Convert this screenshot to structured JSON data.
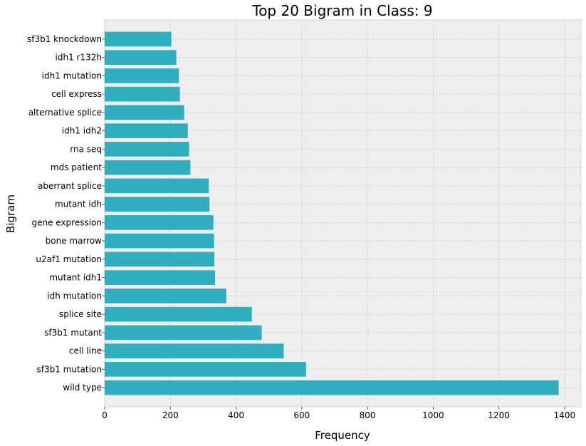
{
  "chart_data": {
    "type": "bar",
    "orientation": "horizontal",
    "title": "Top 20 Bigram in Class: 9",
    "xlabel": "Frequency",
    "ylabel": "Bigram",
    "xlim": [
      0,
      1450
    ],
    "xticks": [
      0,
      200,
      400,
      600,
      800,
      1000,
      1200,
      1400
    ],
    "grid": true,
    "bar_color": "#30aec0",
    "background_color": "#eeeeee",
    "grid_color": "#cbcbcb",
    "categories": [
      "sf3b1 knockdown",
      "idh1 r132h",
      "idh1 mutation",
      "cell express",
      "alternative splice",
      "idh1 idh2",
      "rna seq",
      "mds patient",
      "aberrant splice",
      "mutant idh",
      "gene expression",
      "bone marrow",
      "u2af1 mutation",
      "mutant idh1",
      "idh mutation",
      "splice site",
      "sf3b1 mutant",
      "cell line",
      "sf3b1 mutation",
      "wild type"
    ],
    "values": [
      203,
      218,
      226,
      229,
      242,
      253,
      257,
      261,
      317,
      319,
      331,
      333,
      334,
      336,
      370,
      448,
      478,
      545,
      613,
      1382
    ]
  }
}
